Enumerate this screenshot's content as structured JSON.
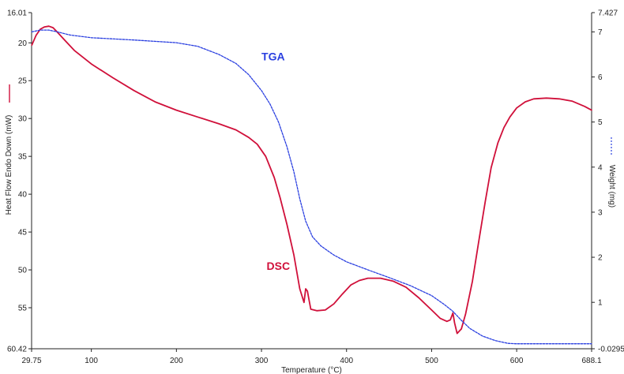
{
  "chart_data": {
    "type": "line",
    "title": "",
    "xlabel": "Temperature (°C)",
    "ylabel_left": "Heat Flow Endo Down (mW)",
    "ylabel_right": "Weight (mg)",
    "xlim": [
      29.75,
      688.1
    ],
    "ylim_left": [
      16.01,
      60.42
    ],
    "ylim_left_inverted": true,
    "ylim_right": [
      -0.02958,
      7.427
    ],
    "x_ticks": [
      "29.75",
      "100",
      "200",
      "300",
      "400",
      "500",
      "600",
      "688.1"
    ],
    "x_tick_values": [
      29.75,
      100,
      200,
      300,
      400,
      500,
      600,
      688.1
    ],
    "y_left_ticks": [
      "16.01",
      "20",
      "25",
      "30",
      "35",
      "40",
      "45",
      "50",
      "55",
      "60.42"
    ],
    "y_left_tick_values": [
      16.01,
      20,
      25,
      30,
      35,
      40,
      45,
      50,
      55,
      60.42
    ],
    "y_right_ticks": [
      "7.427",
      "7",
      "6",
      "5",
      "4",
      "3",
      "2",
      "1",
      "-0.02958"
    ],
    "y_right_tick_values": [
      7.427,
      7,
      6,
      5,
      4,
      3,
      2,
      1,
      -0.02958
    ],
    "series": [
      {
        "name": "DSC",
        "axis": "left",
        "color": "#d0103a",
        "style": "solid",
        "points": [
          [
            30,
            20.3
          ],
          [
            35,
            19.0
          ],
          [
            40,
            18.2
          ],
          [
            45,
            17.9
          ],
          [
            50,
            17.8
          ],
          [
            55,
            18.0
          ],
          [
            60,
            18.6
          ],
          [
            70,
            19.8
          ],
          [
            80,
            21.0
          ],
          [
            100,
            22.8
          ],
          [
            125,
            24.6
          ],
          [
            150,
            26.3
          ],
          [
            175,
            27.8
          ],
          [
            200,
            28.9
          ],
          [
            225,
            29.8
          ],
          [
            250,
            30.7
          ],
          [
            270,
            31.5
          ],
          [
            285,
            32.5
          ],
          [
            295,
            33.4
          ],
          [
            305,
            35.0
          ],
          [
            315,
            37.8
          ],
          [
            322,
            40.5
          ],
          [
            330,
            44.0
          ],
          [
            338,
            48.0
          ],
          [
            345,
            52.5
          ],
          [
            350,
            54.3
          ],
          [
            352,
            52.5
          ],
          [
            354,
            52.8
          ],
          [
            356,
            54.0
          ],
          [
            358,
            55.2
          ],
          [
            365,
            55.4
          ],
          [
            375,
            55.3
          ],
          [
            385,
            54.5
          ],
          [
            395,
            53.2
          ],
          [
            405,
            52.0
          ],
          [
            415,
            51.4
          ],
          [
            425,
            51.1
          ],
          [
            440,
            51.1
          ],
          [
            455,
            51.5
          ],
          [
            470,
            52.3
          ],
          [
            485,
            53.7
          ],
          [
            500,
            55.3
          ],
          [
            510,
            56.4
          ],
          [
            518,
            56.8
          ],
          [
            522,
            56.6
          ],
          [
            525,
            55.7
          ],
          [
            527,
            57.0
          ],
          [
            530,
            58.4
          ],
          [
            535,
            57.8
          ],
          [
            540,
            55.8
          ],
          [
            548,
            51.5
          ],
          [
            555,
            46.5
          ],
          [
            563,
            41.0
          ],
          [
            570,
            36.5
          ],
          [
            578,
            33.2
          ],
          [
            585,
            31.2
          ],
          [
            592,
            29.8
          ],
          [
            600,
            28.6
          ],
          [
            610,
            27.8
          ],
          [
            620,
            27.4
          ],
          [
            635,
            27.3
          ],
          [
            650,
            27.4
          ],
          [
            665,
            27.7
          ],
          [
            680,
            28.4
          ],
          [
            688,
            28.9
          ]
        ]
      },
      {
        "name": "TGA",
        "axis": "right",
        "color": "#2a3fe0",
        "style": "dashed",
        "points": [
          [
            30,
            7.0
          ],
          [
            40,
            7.04
          ],
          [
            50,
            7.04
          ],
          [
            60,
            7.0
          ],
          [
            75,
            6.93
          ],
          [
            100,
            6.87
          ],
          [
            150,
            6.82
          ],
          [
            200,
            6.76
          ],
          [
            225,
            6.68
          ],
          [
            250,
            6.5
          ],
          [
            270,
            6.3
          ],
          [
            285,
            6.05
          ],
          [
            300,
            5.7
          ],
          [
            310,
            5.4
          ],
          [
            320,
            5.0
          ],
          [
            330,
            4.45
          ],
          [
            338,
            3.9
          ],
          [
            345,
            3.3
          ],
          [
            352,
            2.8
          ],
          [
            360,
            2.45
          ],
          [
            370,
            2.25
          ],
          [
            385,
            2.05
          ],
          [
            400,
            1.9
          ],
          [
            425,
            1.72
          ],
          [
            450,
            1.55
          ],
          [
            475,
            1.37
          ],
          [
            500,
            1.15
          ],
          [
            515,
            0.95
          ],
          [
            525,
            0.8
          ],
          [
            535,
            0.6
          ],
          [
            545,
            0.42
          ],
          [
            560,
            0.25
          ],
          [
            575,
            0.15
          ],
          [
            590,
            0.09
          ],
          [
            600,
            0.08
          ],
          [
            650,
            0.08
          ],
          [
            688,
            0.08
          ]
        ]
      }
    ],
    "annotations": [
      {
        "text": "TGA",
        "x": 300,
        "y_left": 22.3,
        "color": "#2a3fe0"
      },
      {
        "text": "DSC",
        "x": 306,
        "y_left": 50.0,
        "color": "#d0103a"
      }
    ],
    "colors": {
      "axis": "#222222",
      "dsc": "#d0103a",
      "tga": "#2a3fe0",
      "annotation_tga": "#2a3fe0",
      "annotation_dsc": "#d0103a"
    },
    "grid": false,
    "legend": "none"
  }
}
